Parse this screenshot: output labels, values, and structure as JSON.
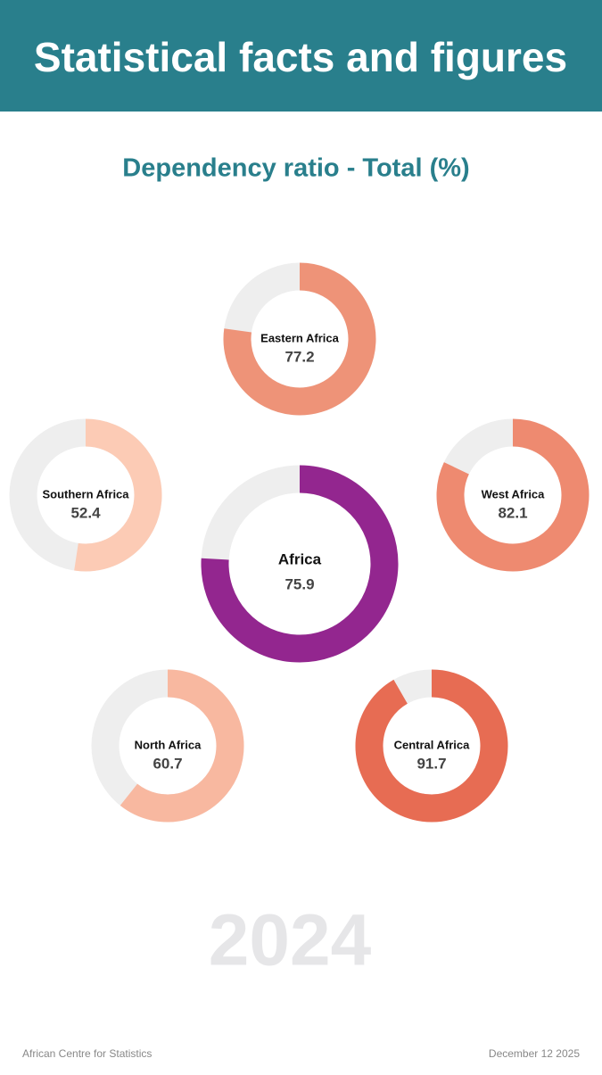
{
  "header": {
    "title": "Statistical facts and figures"
  },
  "chart_data": {
    "type": "donut",
    "title": "Dependency ratio - Total (%)",
    "categories": [
      "Eastern Africa",
      "Southern Africa",
      "West Africa",
      "Africa",
      "North Africa",
      "Central Africa"
    ],
    "values": [
      77.2,
      52.4,
      82.1,
      75.9,
      60.7,
      91.7
    ],
    "colors": [
      "#ee9378",
      "#fccbb5",
      "#ee8a70",
      "#93268f",
      "#f8b8a0",
      "#e76c53"
    ],
    "ylim": [
      0,
      100
    ]
  },
  "year": "2024",
  "footer": {
    "source": "African Centre for Statistics",
    "date": "December 12 2025"
  }
}
